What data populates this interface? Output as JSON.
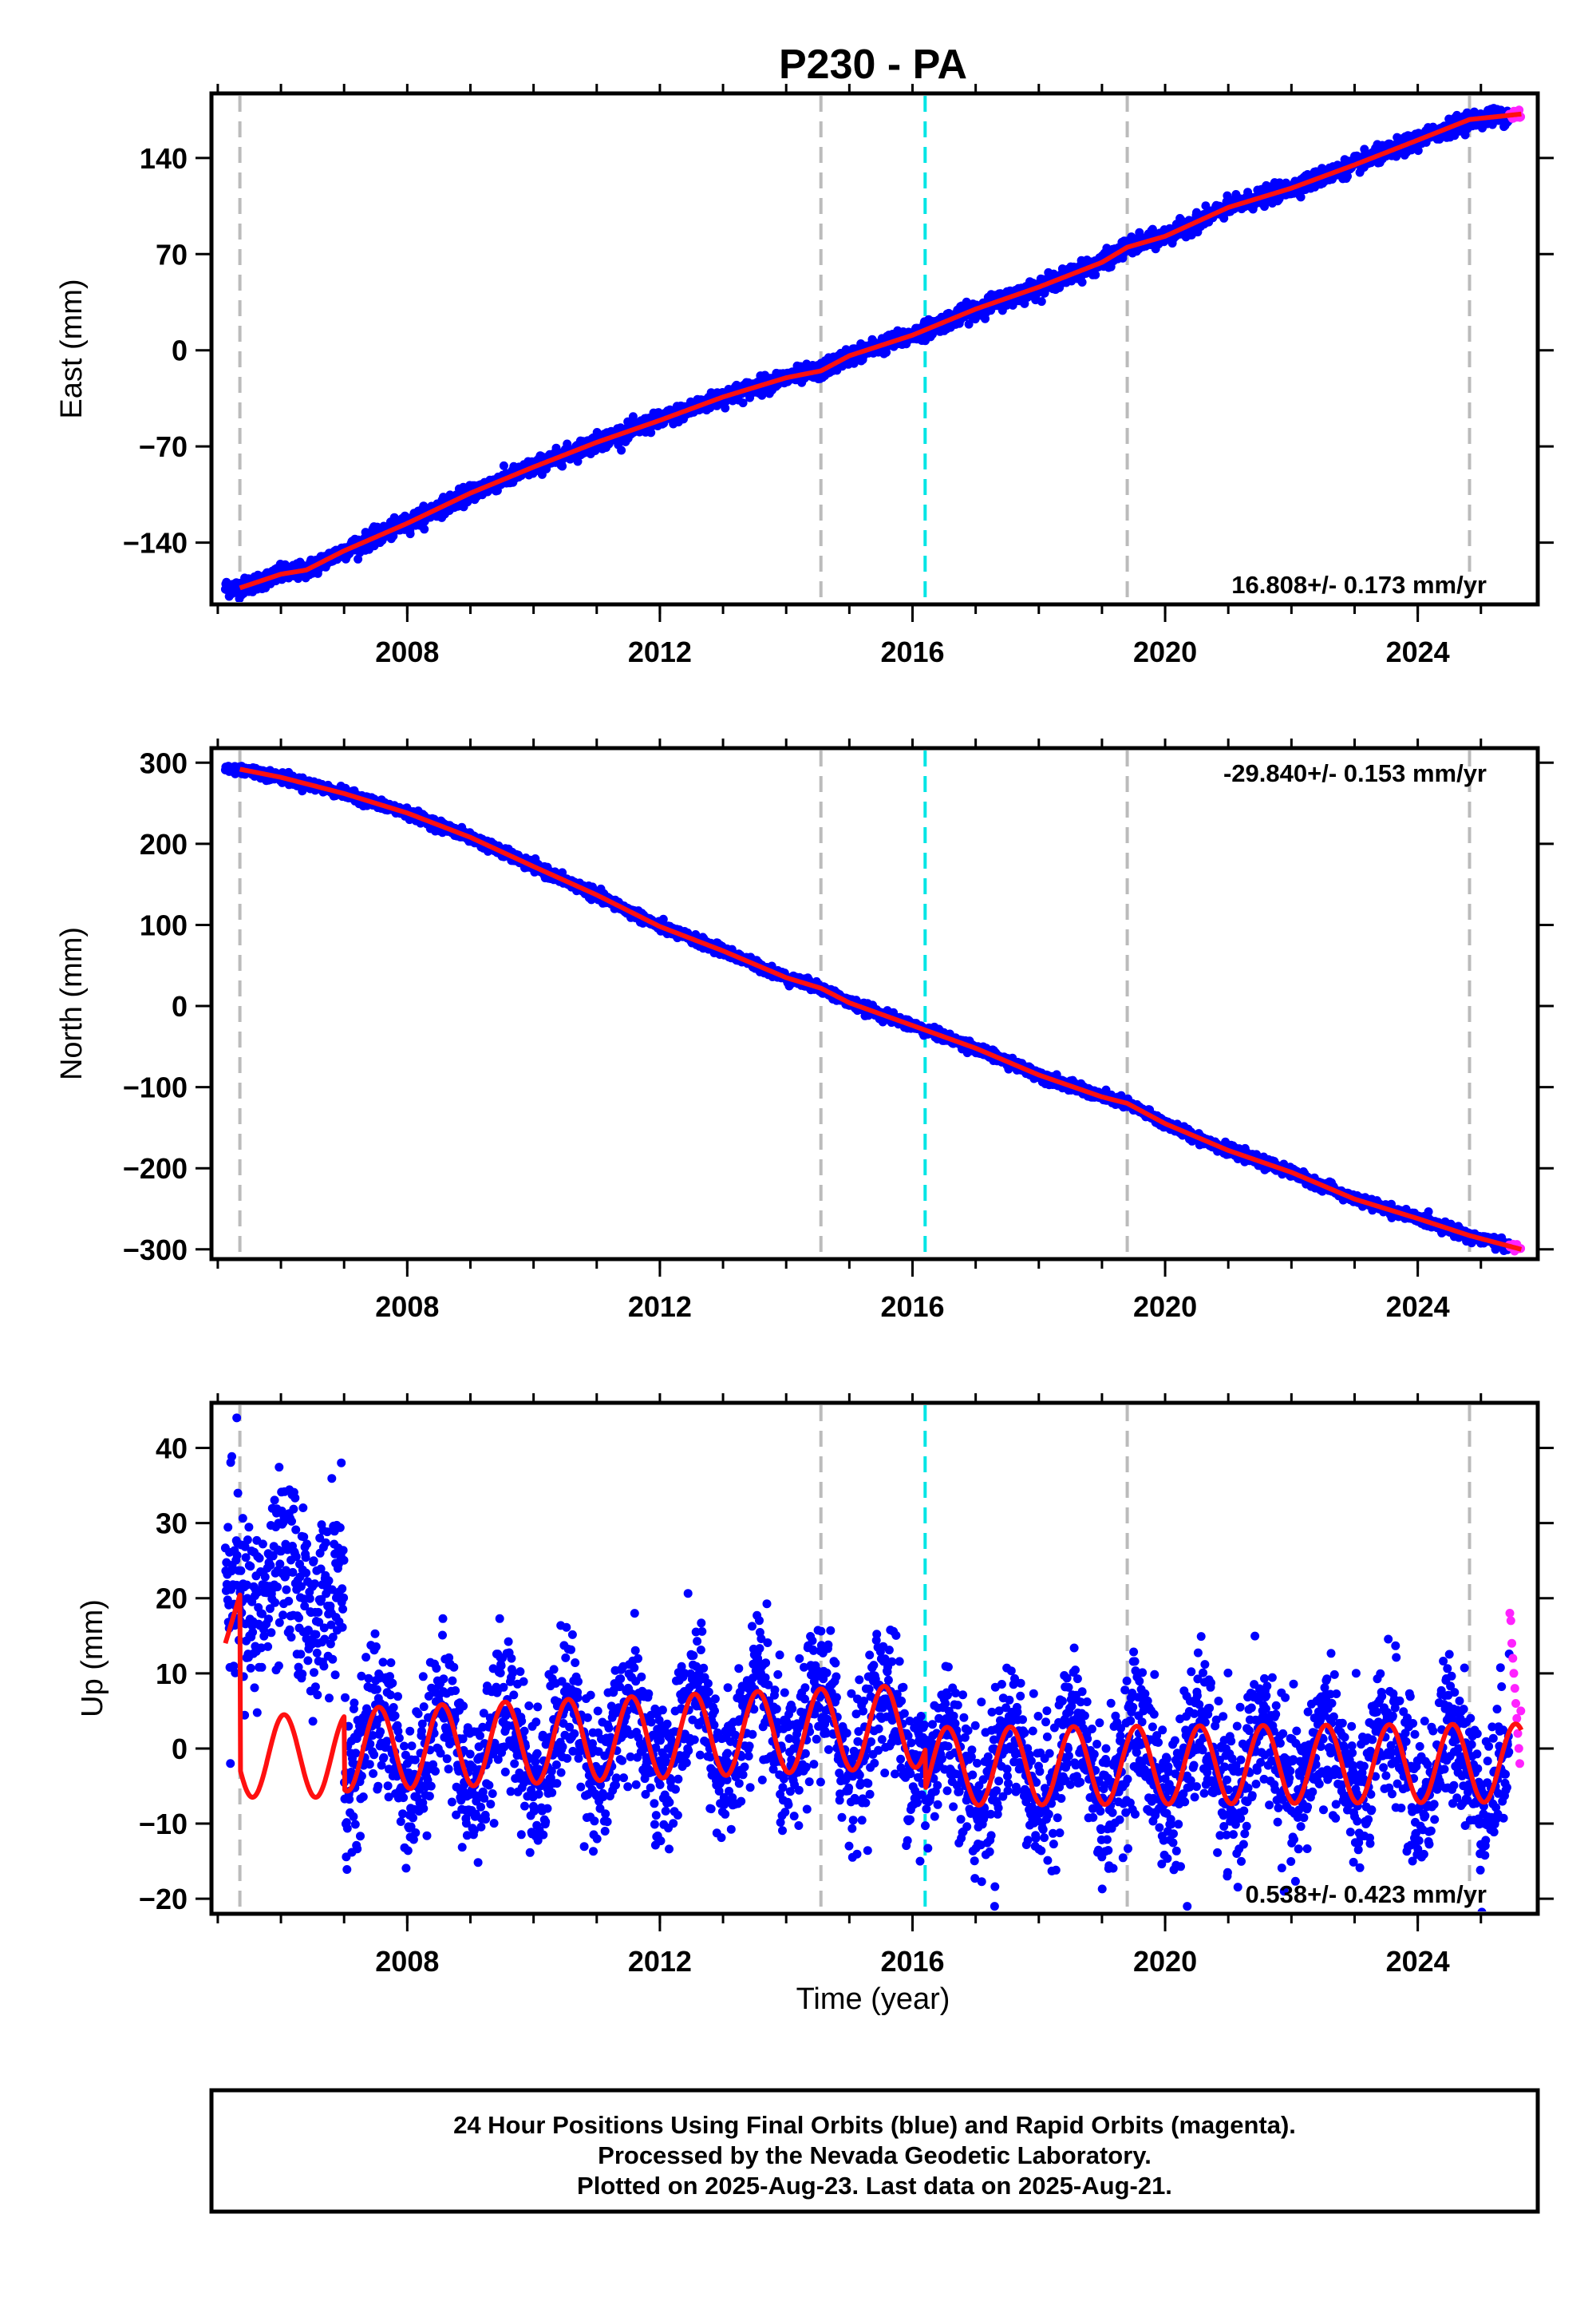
{
  "title": "P230 - PA",
  "colors": {
    "final_orbits": "#0000ff",
    "rapid_orbits": "#ff22ff",
    "model_fit": "#ff1010",
    "event_marker": "#bbbbbb",
    "antenna_marker": "#00e5e5",
    "frame": "#000000"
  },
  "x_axis": {
    "label": "Time (year)",
    "range": [
      2004.9,
      2025.9
    ],
    "ticks": [
      2008,
      2012,
      2016,
      2020,
      2024
    ],
    "tick_labels": [
      "2008",
      "2012",
      "2016",
      "2020",
      "2024"
    ]
  },
  "event_markers": {
    "gray_dashed": [
      2005.35,
      2014.55,
      2019.4,
      2024.82
    ],
    "cyan_dashed": [
      2016.2
    ]
  },
  "chart_data": [
    {
      "type": "scatter",
      "name": "east",
      "ylabel": "East (mm)",
      "ylim": [
        -185,
        187
      ],
      "yticks": [
        -140,
        -70,
        0,
        70,
        140
      ],
      "ytick_labels": [
        "−140",
        "−70",
        "0",
        "70",
        "140"
      ],
      "rate_text": "16.808+/- 0.173 mm/yr",
      "trend": {
        "t0": 2016.0,
        "v0": 11.6,
        "rate": 16.808
      },
      "scatter_sd": 3.0,
      "series": [
        {
          "name": "final_orbits",
          "x_range": [
            2005.12,
            2025.45
          ]
        },
        {
          "name": "rapid_orbits",
          "x_range": [
            2025.45,
            2025.64
          ]
        },
        {
          "name": "model_fit",
          "x_range": [
            2005.35,
            2025.64
          ]
        }
      ],
      "fit_points": [
        [
          2005.35,
          -173
        ],
        [
          2006.0,
          -163
        ],
        [
          2006.4,
          -160
        ],
        [
          2007,
          -146
        ],
        [
          2008,
          -126
        ],
        [
          2009,
          -104
        ],
        [
          2010,
          -85
        ],
        [
          2011,
          -67
        ],
        [
          2012,
          -51
        ],
        [
          2013,
          -34
        ],
        [
          2014,
          -20
        ],
        [
          2014.55,
          -15
        ],
        [
          2015,
          -4
        ],
        [
          2016,
          11
        ],
        [
          2017,
          30
        ],
        [
          2018,
          46
        ],
        [
          2019,
          64
        ],
        [
          2019.4,
          75
        ],
        [
          2020,
          83
        ],
        [
          2021,
          104
        ],
        [
          2022,
          118
        ],
        [
          2023,
          135
        ],
        [
          2024,
          153
        ],
        [
          2024.82,
          168
        ],
        [
          2025.64,
          172
        ]
      ]
    },
    {
      "type": "scatter",
      "name": "north",
      "ylabel": "North (mm)",
      "ylim": [
        -312,
        318
      ],
      "yticks": [
        -300,
        -200,
        -100,
        0,
        100,
        200,
        300
      ],
      "ytick_labels": [
        "−300",
        "−200",
        "−100",
        "0",
        "100",
        "200",
        "300"
      ],
      "rate_text": "-29.840+/- 0.153 mm/yr",
      "trend": {
        "t0": 2016.0,
        "v0": -23.5,
        "rate": -29.84
      },
      "scatter_sd": 3.0,
      "series": [
        {
          "name": "final_orbits",
          "x_range": [
            2005.12,
            2025.45
          ]
        },
        {
          "name": "rapid_orbits",
          "x_range": [
            2025.45,
            2025.64
          ]
        },
        {
          "name": "model_fit",
          "x_range": [
            2005.35,
            2025.64
          ]
        }
      ],
      "fit_points": [
        [
          2005.35,
          292
        ],
        [
          2006,
          282
        ],
        [
          2007,
          262
        ],
        [
          2008,
          238
        ],
        [
          2009,
          208
        ],
        [
          2010,
          172
        ],
        [
          2011,
          137
        ],
        [
          2012,
          98
        ],
        [
          2013,
          68
        ],
        [
          2014,
          35
        ],
        [
          2014.55,
          22
        ],
        [
          2015,
          4
        ],
        [
          2016,
          -24
        ],
        [
          2017,
          -52
        ],
        [
          2018,
          -85
        ],
        [
          2019,
          -112
        ],
        [
          2019.4,
          -120
        ],
        [
          2020,
          -145
        ],
        [
          2021,
          -178
        ],
        [
          2022,
          -205
        ],
        [
          2023,
          -238
        ],
        [
          2024,
          -262
        ],
        [
          2024.82,
          -283
        ],
        [
          2025.64,
          -300
        ]
      ]
    },
    {
      "type": "scatter",
      "name": "up",
      "ylabel": "Up (mm)",
      "ylim": [
        -22,
        46
      ],
      "yticks": [
        -20,
        -10,
        0,
        10,
        20,
        30,
        40
      ],
      "ytick_labels": [
        "−20",
        "−10",
        "0",
        "10",
        "20",
        "30",
        "40"
      ],
      "rate_text": "0.538+/- 0.423 mm/yr",
      "scatter_sd": 4.8,
      "series": [
        {
          "name": "final_orbits",
          "x_range": [
            2005.12,
            2025.45
          ]
        },
        {
          "name": "rapid_orbits",
          "x_range": [
            2025.45,
            2025.64
          ]
        },
        {
          "name": "model_fit",
          "x_range": [
            2005.12,
            2025.64
          ]
        }
      ],
      "early_cloud": {
        "x_range": [
          2005.12,
          2007.0
        ],
        "center": 21,
        "sd": 6
      },
      "fit_segments": [
        {
          "x_range": [
            2005.12,
            2005.35
          ],
          "offset": 14,
          "rate": 28,
          "amp": 0,
          "phase": 0
        },
        {
          "x_range": [
            2005.35,
            2007.0
          ],
          "offset": -1,
          "rate": 0,
          "amp": 5.5,
          "phase": 0.2
        },
        {
          "x_range": [
            2007.0,
            2016.2
          ],
          "offset": -0.2,
          "rate": 0.35,
          "amp": 5.5,
          "phase": 0.7
        },
        {
          "x_range": [
            2016.2,
            2025.64
          ],
          "offset": -2.4,
          "rate": 0.05,
          "amp": 5.2,
          "phase": 0.7
        }
      ],
      "outliers": [
        [
          2005.3,
          44
        ],
        [
          2016.12,
          -15
        ],
        [
          2020.35,
          -21
        ],
        [
          2017.3,
          -21
        ],
        [
          2005.2,
          -2
        ]
      ],
      "rapid_values": [
        18,
        17,
        14,
        12,
        10,
        8,
        6,
        4,
        2,
        0,
        -2,
        5
      ]
    }
  ],
  "footer": {
    "line1": "24 Hour Positions Using Final Orbits (blue) and Rapid Orbits (magenta).",
    "line2": "Processed by the Nevada Geodetic Laboratory.",
    "line3": "Plotted on 2025-Aug-23. Last data on 2025-Aug-21."
  }
}
